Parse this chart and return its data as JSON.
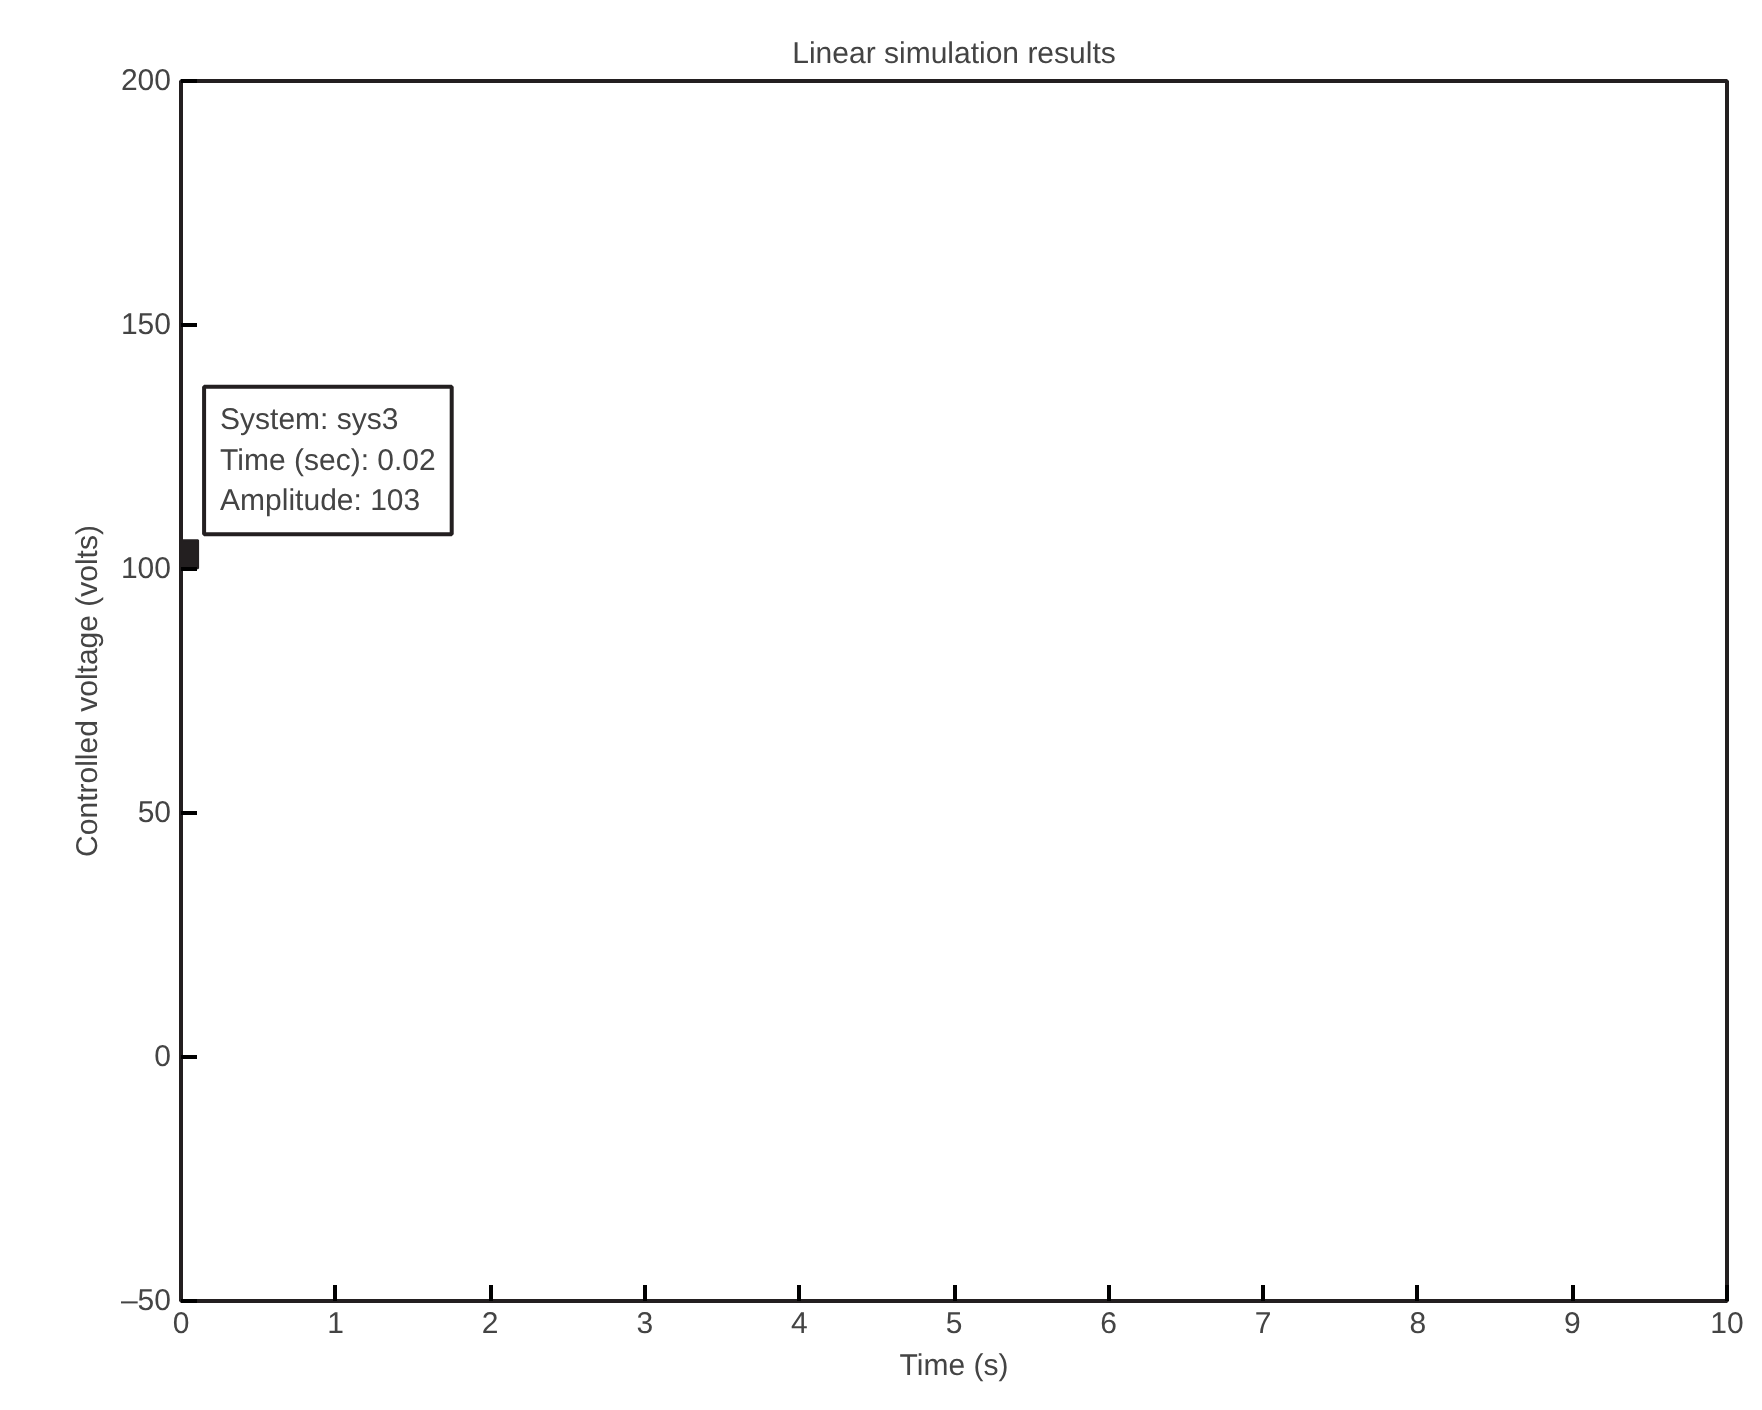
{
  "chart_data": {
    "type": "scatter",
    "title": "Linear simulation results",
    "xlabel": "Time (s)",
    "ylabel": "Controlled voltage (volts)",
    "x": [
      0.02
    ],
    "series": [
      {
        "color": "#231f20",
        "values": [
          103
        ]
      }
    ],
    "marker": "square",
    "grid": false,
    "xlim": [
      0,
      10
    ],
    "ylim": [
      -50,
      200
    ],
    "xticks": [
      0,
      1,
      2,
      3,
      4,
      5,
      6,
      7,
      8,
      9,
      10
    ],
    "yticks": [
      {
        "value": -50,
        "label": "–50"
      },
      0,
      50,
      100,
      150,
      200
    ],
    "annotations": [
      {
        "text": "System: sys3\nTime (sec): 0.02\nAmplitude: 103",
        "x": 0.02,
        "y": 103
      }
    ]
  }
}
